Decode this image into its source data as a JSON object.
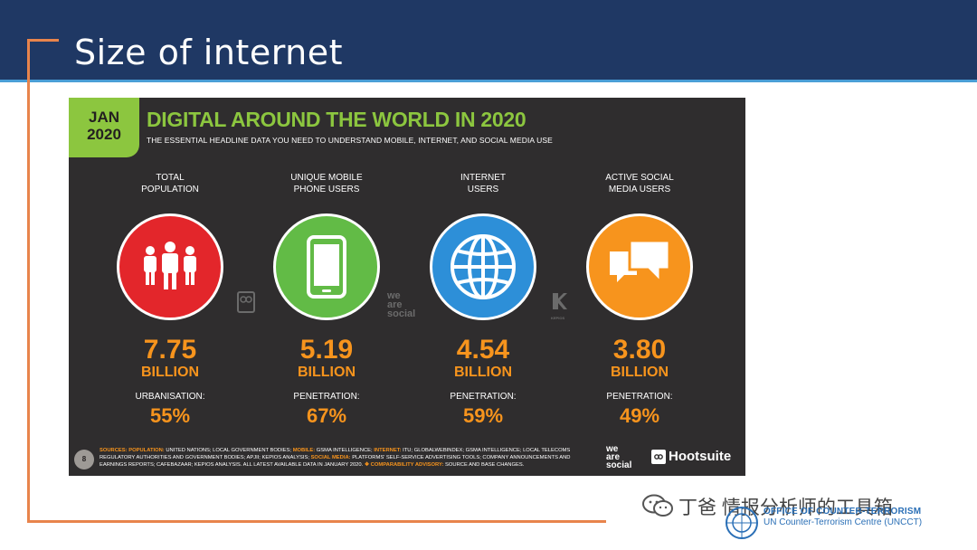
{
  "slide": {
    "title": "Size of internet"
  },
  "infographic": {
    "badge_month": "JAN",
    "badge_year": "2020",
    "title": "DIGITAL AROUND THE WORLD IN 2020",
    "subtitle": "THE ESSENTIAL HEADLINE DATA YOU NEED TO UNDERSTAND MOBILE, INTERNET, AND SOCIAL MEDIA USE",
    "stats": [
      {
        "label": "TOTAL\nPOPULATION",
        "value": "7.75",
        "unit": "BILLION",
        "sub_label": "URBANISATION:",
        "sub_value": "55%",
        "icon": "people-icon",
        "color": "#e3262b"
      },
      {
        "label": "UNIQUE MOBILE\nPHONE USERS",
        "value": "5.19",
        "unit": "BILLION",
        "sub_label": "PENETRATION:",
        "sub_value": "67%",
        "icon": "mobile-phone-icon",
        "color": "#62bb46"
      },
      {
        "label": "INTERNET\nUSERS",
        "value": "4.54",
        "unit": "BILLION",
        "sub_label": "PENETRATION:",
        "sub_value": "59%",
        "icon": "globe-icon",
        "color": "#2d8fd8"
      },
      {
        "label": "ACTIVE SOCIAL\nMEDIA USERS",
        "value": "3.80",
        "unit": "BILLION",
        "sub_label": "PENETRATION:",
        "sub_value": "49%",
        "icon": "speech-bubbles-icon",
        "color": "#f7941d"
      }
    ],
    "page_number": "8",
    "sources": {
      "p1": "SOURCES:",
      "p2": "POPULATION:",
      "p3": " UNITED NATIONS; LOCAL GOVERNMENT BODIES; ",
      "p4": "MOBILE:",
      "p5": " GSMA INTELLIGENCE; ",
      "p6": "INTERNET:",
      "p7": " ITU; GLOBALWEBINDEX; GSMA INTELLIGENCE; LOCAL TELECOMS REGULATORY AUTHORITIES AND GOVERNMENT BODIES; APJII; KEPIOS ANALYSIS; ",
      "p8": "SOCIAL MEDIA:",
      "p9": " PLATFORMS' SELF-SERVICE ADVERTISING TOOLS; COMPANY ANNOUNCEMENTS AND EARNINGS REPORTS; CAFEBAZAAR; KEPIOS ANALYSIS. ALL LATEST AVAILABLE DATA IN JANUARY 2020. ",
      "p10": "❖ COMPARABILITY ADVISORY:",
      "p11": " SOURCE AND BASE CHANGES."
    },
    "logo_we": "we",
    "logo_are": "are",
    "logo_social": "social",
    "logo_hootsuite": "Hootsuite",
    "logo_kepios": "KEPIOS",
    "colors": {
      "background": "#2f2d2e",
      "accent_green": "#8cc63f",
      "accent_orange": "#f7941d"
    }
  },
  "watermark": {
    "text": "丁爸 情报分析师的工具箱"
  },
  "organization": {
    "line1": "OFFICE OF COUNTER-TERRORISM",
    "line2": "UN Counter-Terrorism Centre (UNCCT)"
  }
}
